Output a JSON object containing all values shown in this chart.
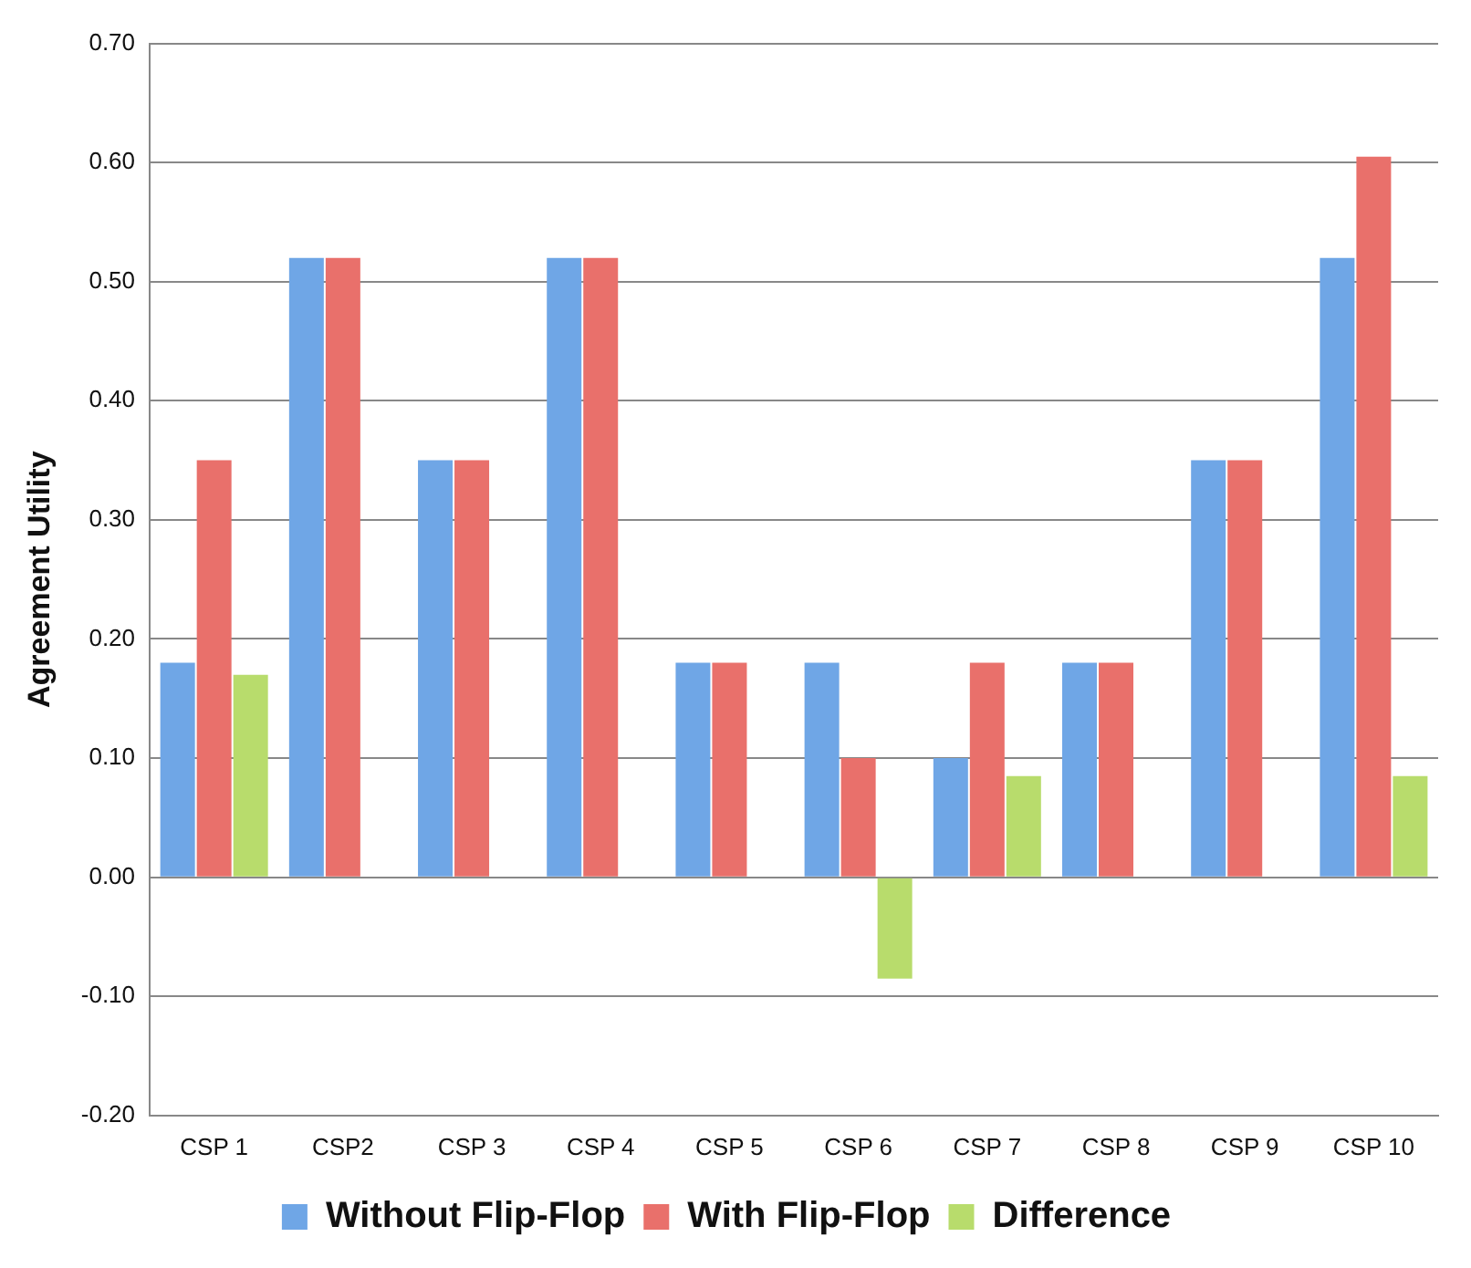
{
  "chart_data": {
    "type": "bar",
    "ylabel": "Agreement Utility",
    "categories": [
      "CSP 1",
      "CSP2",
      "CSP 3",
      "CSP 4",
      "CSP 5",
      "CSP 6",
      "CSP 7",
      "CSP 8",
      "CSP 9",
      "CSP 10"
    ],
    "series": [
      {
        "name": "Without Flip-Flop",
        "color": "#6fa6e6",
        "values": [
          0.18,
          0.52,
          0.35,
          0.52,
          0.18,
          0.18,
          0.1,
          0.18,
          0.35,
          0.52
        ]
      },
      {
        "name": "With Flip-Flop",
        "color": "#e9706b",
        "values": [
          0.35,
          0.52,
          0.35,
          0.52,
          0.18,
          0.1,
          0.18,
          0.18,
          0.35,
          0.605
        ]
      },
      {
        "name": "Difference",
        "color": "#b8dc6c",
        "values": [
          0.17,
          0,
          0,
          0,
          0,
          -0.085,
          0.085,
          0,
          0,
          0.085
        ]
      }
    ],
    "ylim": [
      -0.2,
      0.7
    ],
    "yticks": [
      {
        "value": -0.2,
        "label": "-0.20"
      },
      {
        "value": -0.1,
        "label": "-0.10"
      },
      {
        "value": 0,
        "label": "0.00"
      },
      {
        "value": 0.1,
        "label": "0.10"
      },
      {
        "value": 0.2,
        "label": "0.20"
      },
      {
        "value": 0.3,
        "label": "0.30"
      },
      {
        "value": 0.4,
        "label": "0.40"
      },
      {
        "value": 0.5,
        "label": "0.50"
      },
      {
        "value": 0.6,
        "label": "0.60"
      },
      {
        "value": 0.7,
        "label": "0.70"
      }
    ],
    "grid": "y",
    "legend": "bottom"
  }
}
